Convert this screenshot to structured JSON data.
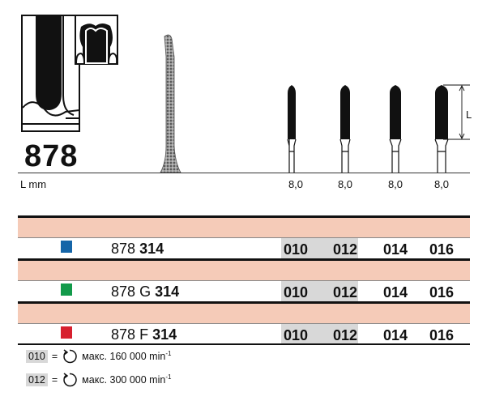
{
  "product": {
    "number": "878",
    "length_label": "L mm",
    "dimension_label": "L"
  },
  "lengths": [
    "8,0",
    "8,0",
    "8,0",
    "8,0"
  ],
  "rows": [
    {
      "color": "#1565a8",
      "prefix": "878",
      "middle": "",
      "suffix": "314",
      "sizes": [
        "010",
        "012",
        "014",
        "016"
      ]
    },
    {
      "color": "#129a4a",
      "prefix": "878",
      "middle": "G",
      "suffix": "314",
      "sizes": [
        "010",
        "012",
        "014",
        "016"
      ]
    },
    {
      "color": "#d7202e",
      "prefix": "878",
      "middle": "F",
      "suffix": "314",
      "sizes": [
        "010",
        "012",
        "014",
        "016"
      ]
    }
  ],
  "highlighted_sizes": [
    "010",
    "012"
  ],
  "legend": [
    {
      "key": "010",
      "eq": "=",
      "text": "макс. 160 000 min",
      "exp": "-1"
    },
    {
      "key": "012",
      "eq": "=",
      "text": "макс. 300 000 min",
      "exp": "-1"
    }
  ],
  "colors": {
    "band": "#f5cbb8",
    "highlight": "#d8d8d8"
  }
}
